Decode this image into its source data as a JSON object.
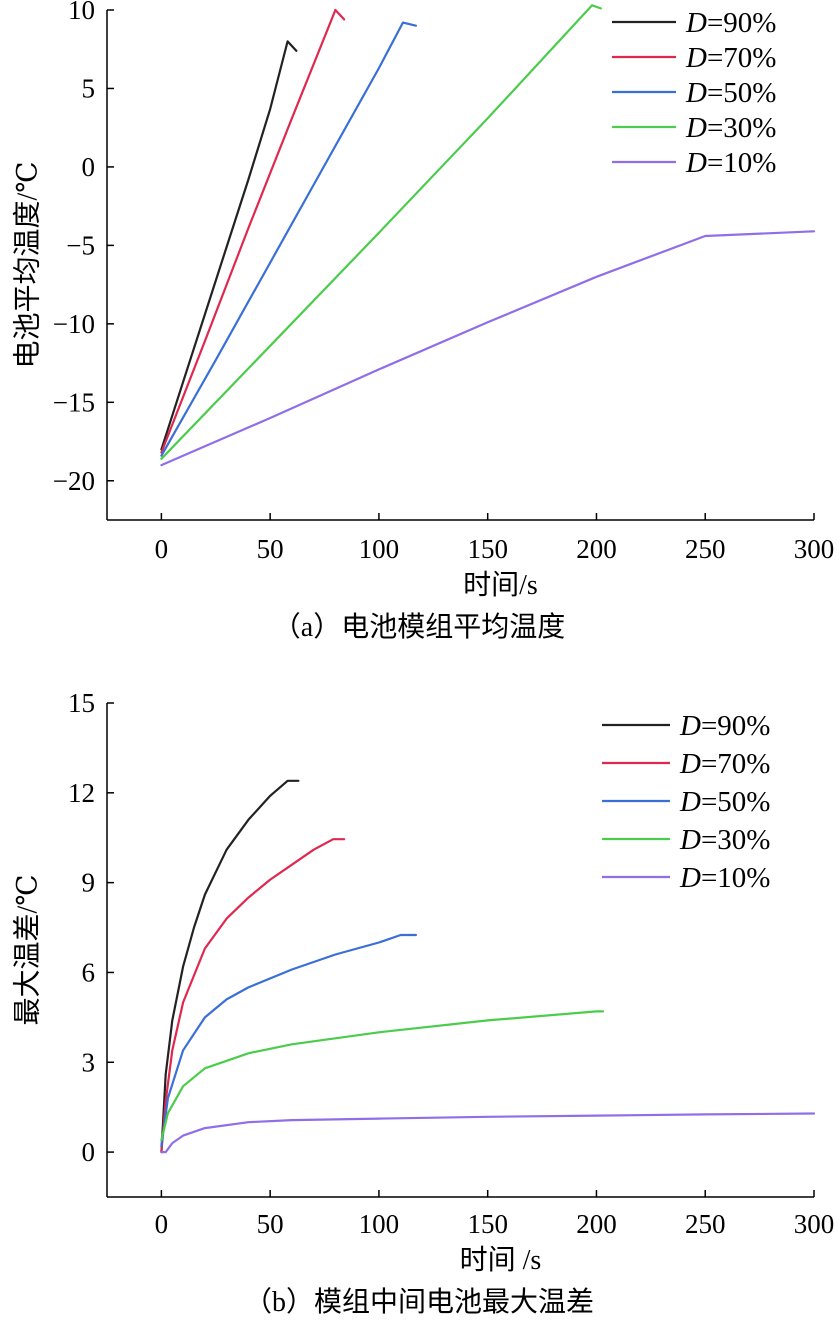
{
  "figure_colors": {
    "D=90%": "#222222",
    "D=70%": "#e0284f",
    "D=50%": "#3a6fd8",
    "D=30%": "#4ccc4c",
    "D=10%": "#8f6ee8"
  },
  "chart_data": [
    {
      "type": "line",
      "caption": "（a）电池模组平均温度",
      "xlabel": "时间/s",
      "ylabel": "电池平均温度/℃",
      "xlim": [
        -25,
        300
      ],
      "ylim": [
        -22.5,
        10
      ],
      "xticks": [
        0,
        50,
        100,
        150,
        200,
        250,
        300
      ],
      "xtick_labels": [
        "0",
        "50",
        "100",
        "150",
        "200",
        "250",
        "300"
      ],
      "yticks": [
        -20,
        -15,
        -10,
        -5,
        0,
        5,
        10
      ],
      "ytick_labels": [
        "−20",
        "−15",
        "−10",
        "−5",
        "0",
        "5",
        "10"
      ],
      "legend_position": "top-right",
      "series": [
        {
          "name": "D=90%",
          "name_italic": "D",
          "name_rest": "=90%",
          "color": "#222222",
          "x": [
            0,
            10,
            20,
            30,
            40,
            50,
            58,
            62
          ],
          "y": [
            -18,
            -13.7,
            -9.4,
            -5.1,
            -0.8,
            3.7,
            8.0,
            7.4
          ]
        },
        {
          "name": "D=70%",
          "name_italic": "D",
          "name_rest": "=70%",
          "color": "#e0284f",
          "x": [
            0,
            20,
            40,
            60,
            80,
            84
          ],
          "y": [
            -18.2,
            -11.1,
            -3.9,
            3.1,
            10.0,
            9.4
          ]
        },
        {
          "name": "D=50%",
          "name_italic": "D",
          "name_rest": "=50%",
          "color": "#3a6fd8",
          "x": [
            0,
            25,
            50,
            75,
            100,
            111,
            117
          ],
          "y": [
            -18.4,
            -12.3,
            -6.1,
            0.1,
            6.3,
            9.2,
            9.0
          ]
        },
        {
          "name": "D=30%",
          "name_italic": "D",
          "name_rest": "=30%",
          "color": "#4ccc4c",
          "x": [
            0,
            50,
            100,
            150,
            198,
            202
          ],
          "y": [
            -18.6,
            -11.4,
            -4.2,
            3.1,
            10.3,
            10.1
          ]
        },
        {
          "name": "D=10%",
          "name_italic": "D",
          "name_rest": "=10%",
          "color": "#8f6ee8",
          "x": [
            0,
            50,
            100,
            150,
            200,
            250,
            300
          ],
          "y": [
            -19.0,
            -16.0,
            -12.9,
            -9.9,
            -7.0,
            -4.4,
            -4.1
          ]
        }
      ]
    },
    {
      "type": "line",
      "caption": "（b）模组中间电池最大温差",
      "xlabel": "时间 /s",
      "ylabel": "最大温差/℃",
      "xlim": [
        -25,
        300
      ],
      "ylim": [
        -1.5,
        15
      ],
      "xticks": [
        0,
        50,
        100,
        150,
        200,
        250,
        300
      ],
      "xtick_labels": [
        "0",
        "50",
        "100",
        "150",
        "200",
        "250",
        "300"
      ],
      "yticks": [
        0,
        3,
        6,
        9,
        12,
        15
      ],
      "ytick_labels": [
        "0",
        "3",
        "6",
        "9",
        "12",
        "15"
      ],
      "legend_position": "top-right",
      "series": [
        {
          "name": "D=90%",
          "name_italic": "D",
          "name_rest": "=90%",
          "color": "#222222",
          "x": [
            0,
            2,
            5,
            10,
            15,
            20,
            30,
            40,
            50,
            58,
            63
          ],
          "y": [
            0,
            2.6,
            4.4,
            6.2,
            7.5,
            8.6,
            10.1,
            11.1,
            11.9,
            12.4,
            12.4
          ]
        },
        {
          "name": "D=70%",
          "name_italic": "D",
          "name_rest": "=70%",
          "color": "#e0284f",
          "x": [
            0,
            2,
            5,
            10,
            20,
            30,
            40,
            50,
            60,
            70,
            79,
            84
          ],
          "y": [
            0,
            1.7,
            3.4,
            5.0,
            6.8,
            7.8,
            8.5,
            9.1,
            9.6,
            10.1,
            10.45,
            10.45
          ]
        },
        {
          "name": "D=50%",
          "name_italic": "D",
          "name_rest": "=50%",
          "color": "#3a6fd8",
          "x": [
            0,
            3,
            10,
            20,
            30,
            40,
            60,
            80,
            100,
            110,
            117
          ],
          "y": [
            0.2,
            1.8,
            3.4,
            4.5,
            5.1,
            5.5,
            6.1,
            6.6,
            7.0,
            7.25,
            7.25
          ]
        },
        {
          "name": "D=30%",
          "name_italic": "D",
          "name_rest": "=30%",
          "color": "#4ccc4c",
          "x": [
            0,
            3,
            10,
            20,
            40,
            60,
            100,
            150,
            200,
            203
          ],
          "y": [
            0.4,
            1.3,
            2.2,
            2.8,
            3.3,
            3.6,
            4.0,
            4.4,
            4.7,
            4.7
          ]
        },
        {
          "name": "D=10%",
          "name_italic": "D",
          "name_rest": "=10%",
          "color": "#8f6ee8",
          "x": [
            0,
            2,
            5,
            10,
            20,
            40,
            60,
            100,
            150,
            200,
            250,
            300
          ],
          "y": [
            0,
            0.0,
            0.3,
            0.55,
            0.8,
            1.0,
            1.07,
            1.12,
            1.18,
            1.22,
            1.26,
            1.29
          ]
        }
      ]
    }
  ]
}
